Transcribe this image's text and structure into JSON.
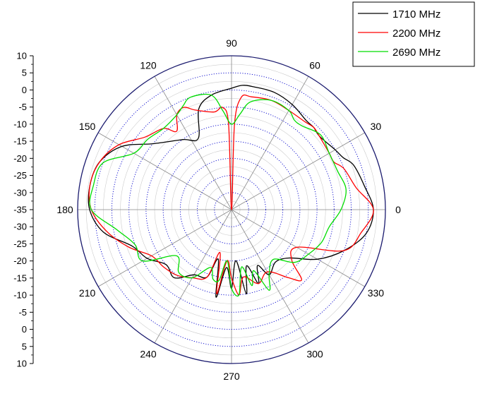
{
  "chart_data": {
    "type": "polar-line",
    "title": "",
    "angle_labels": [
      "0",
      "30",
      "60",
      "90",
      "120",
      "150",
      "180",
      "210",
      "240",
      "270",
      "300",
      "330"
    ],
    "radial_axis": {
      "ticks": [
        "10",
        "5",
        "0",
        "-5",
        "-10",
        "-15",
        "-20",
        "-25",
        "-30",
        "-35",
        "-30",
        "-25",
        "-20",
        "-15",
        "-10",
        "-5",
        "0",
        "5",
        "10"
      ],
      "range": [
        -35,
        10
      ],
      "step": 5
    },
    "grid": true,
    "legend": {
      "position": "top-right"
    },
    "series": [
      {
        "name": "1710 MHz",
        "color": "#000000",
        "angles": [
          0,
          10,
          20,
          25,
          30,
          40,
          45,
          50,
          60,
          70,
          80,
          85,
          90,
          100,
          108,
          115,
          125,
          140,
          150,
          160,
          170,
          180,
          190,
          200,
          210,
          220,
          230,
          240,
          250,
          255,
          260,
          265,
          270,
          275,
          280,
          285,
          290,
          295,
          300,
          310,
          320,
          330,
          340,
          350
        ],
        "values": [
          6.5,
          4.5,
          3,
          1,
          0,
          -1.5,
          -1,
          -1,
          0.5,
          1.5,
          1.5,
          1.5,
          0.5,
          -1,
          -4,
          -12,
          -10,
          -5,
          2,
          6,
          7,
          6.5,
          3,
          -4,
          -6.5,
          -10,
          -9,
          -13,
          -14,
          -20,
          -9,
          -18,
          -12,
          -20,
          -10,
          -18,
          -12,
          -17,
          -13,
          -15,
          -13,
          -6,
          0,
          5
        ],
        "points": [
          [
            0,
            6.5
          ],
          [
            10,
            4.5
          ],
          [
            20,
            3
          ],
          [
            25,
            1
          ],
          [
            30,
            0
          ],
          [
            40,
            -1.5
          ],
          [
            45,
            -1
          ],
          [
            50,
            -1
          ],
          [
            60,
            0.5
          ],
          [
            70,
            1.5
          ],
          [
            80,
            1.5
          ],
          [
            85,
            1.5
          ],
          [
            90,
            0.5
          ],
          [
            100,
            -1
          ],
          [
            108,
            -4
          ],
          [
            115,
            -12
          ],
          [
            125,
            -10
          ],
          [
            140,
            -5
          ],
          [
            150,
            2
          ],
          [
            160,
            6
          ],
          [
            170,
            7
          ],
          [
            180,
            6.5
          ],
          [
            190,
            3
          ],
          [
            200,
            -4
          ],
          [
            210,
            -6.5
          ],
          [
            220,
            -10
          ],
          [
            230,
            -9
          ],
          [
            240,
            -13
          ],
          [
            250,
            -14
          ],
          [
            255,
            -20
          ],
          [
            260,
            -9
          ],
          [
            265,
            -18
          ],
          [
            270,
            -12
          ],
          [
            275,
            -20
          ],
          [
            280,
            -10
          ],
          [
            285,
            -18
          ],
          [
            290,
            -12
          ],
          [
            295,
            -17
          ],
          [
            300,
            -13
          ],
          [
            310,
            -15
          ],
          [
            320,
            -13
          ],
          [
            330,
            -6
          ],
          [
            340,
            0
          ],
          [
            350,
            5
          ]
        ]
      },
      {
        "name": "2200 MHz",
        "color": "#ff0000",
        "angles": [
          0,
          10,
          20,
          25,
          30,
          40,
          45,
          50,
          60,
          70,
          80,
          85,
          88,
          90,
          92,
          95,
          100,
          110,
          115,
          120,
          125,
          130,
          140,
          150,
          160,
          170,
          180,
          190,
          200,
          210,
          220,
          230,
          240,
          250,
          255,
          260,
          265,
          270,
          275,
          280,
          290,
          300,
          310,
          315,
          320,
          330,
          340,
          350
        ],
        "values": [
          6.5,
          2,
          0,
          -2,
          -2,
          -1.5,
          -1,
          -1.5,
          -1.5,
          -1,
          -1.5,
          -2,
          -10,
          -35,
          -10,
          -5,
          -6,
          -4,
          -2,
          -3,
          -7,
          -4,
          -2,
          3,
          6,
          7,
          6,
          2,
          -3,
          -8,
          -9,
          -10,
          -12,
          -14,
          -22,
          -10,
          -20,
          -15,
          -10,
          -15,
          -12,
          -14,
          -9,
          -6,
          -12,
          -13,
          0,
          3.5
        ],
        "points": [
          [
            0,
            6.5
          ],
          [
            10,
            2
          ],
          [
            20,
            0
          ],
          [
            25,
            -2
          ],
          [
            30,
            -2
          ],
          [
            40,
            -1.5
          ],
          [
            45,
            -1
          ],
          [
            50,
            -1.5
          ],
          [
            60,
            -1.5
          ],
          [
            70,
            -1
          ],
          [
            80,
            -1.5
          ],
          [
            85,
            -2
          ],
          [
            88,
            -10
          ],
          [
            90,
            -35
          ],
          [
            92,
            -10
          ],
          [
            95,
            -5
          ],
          [
            100,
            -6
          ],
          [
            110,
            -4
          ],
          [
            115,
            -2
          ],
          [
            120,
            -3
          ],
          [
            125,
            -7
          ],
          [
            130,
            -4
          ],
          [
            140,
            -2
          ],
          [
            150,
            3
          ],
          [
            160,
            6
          ],
          [
            170,
            7
          ],
          [
            180,
            6
          ],
          [
            190,
            2
          ],
          [
            200,
            -3
          ],
          [
            210,
            -8
          ],
          [
            220,
            -9
          ],
          [
            230,
            -10
          ],
          [
            240,
            -12
          ],
          [
            250,
            -14
          ],
          [
            255,
            -22
          ],
          [
            260,
            -10
          ],
          [
            265,
            -20
          ],
          [
            270,
            -15
          ],
          [
            275,
            -10
          ],
          [
            280,
            -15
          ],
          [
            290,
            -12
          ],
          [
            300,
            -14
          ],
          [
            310,
            -9
          ],
          [
            315,
            -6
          ],
          [
            320,
            -12
          ],
          [
            330,
            -13
          ],
          [
            340,
            0
          ],
          [
            350,
            3.5
          ]
        ]
      },
      {
        "name": "2690 MHz",
        "color": "#00dd00",
        "angles": [
          0,
          10,
          20,
          30,
          40,
          50,
          55,
          60,
          70,
          80,
          85,
          90,
          95,
          100,
          110,
          115,
          120,
          130,
          140,
          150,
          160,
          170,
          180,
          190,
          200,
          210,
          220,
          230,
          240,
          250,
          255,
          260,
          265,
          270,
          275,
          280,
          285,
          290,
          295,
          300,
          310,
          320,
          330,
          340,
          350
        ],
        "values": [
          -3,
          -1,
          -2,
          -2,
          -1,
          -3,
          -3,
          -1.5,
          -1,
          -3,
          -7,
          -10,
          -6,
          -1,
          0,
          -1.5,
          -3,
          -4,
          -3,
          -2,
          5,
          6,
          6,
          -1,
          -5,
          -5,
          -14,
          -11,
          -12,
          -17,
          -14,
          -14,
          -20,
          -12,
          -10,
          -18,
          -12,
          -16,
          -9,
          -13,
          -16,
          -11,
          -9,
          -7,
          -6
        ],
        "points": [
          [
            0,
            -3
          ],
          [
            10,
            -1
          ],
          [
            20,
            -2
          ],
          [
            30,
            -2
          ],
          [
            40,
            -1
          ],
          [
            50,
            -3
          ],
          [
            55,
            -3
          ],
          [
            60,
            -1.5
          ],
          [
            70,
            -1
          ],
          [
            80,
            -3
          ],
          [
            85,
            -7
          ],
          [
            90,
            -10
          ],
          [
            95,
            -6
          ],
          [
            100,
            -1
          ],
          [
            110,
            0
          ],
          [
            115,
            -1.5
          ],
          [
            120,
            -3
          ],
          [
            130,
            -4
          ],
          [
            140,
            -3
          ],
          [
            150,
            -2
          ],
          [
            160,
            5
          ],
          [
            170,
            6
          ],
          [
            180,
            6
          ],
          [
            190,
            -1
          ],
          [
            200,
            -5
          ],
          [
            210,
            -5
          ],
          [
            220,
            -14
          ],
          [
            230,
            -11
          ],
          [
            240,
            -12
          ],
          [
            250,
            -17
          ],
          [
            255,
            -14
          ],
          [
            260,
            -14
          ],
          [
            265,
            -20
          ],
          [
            270,
            -12
          ],
          [
            275,
            -10
          ],
          [
            280,
            -18
          ],
          [
            285,
            -12
          ],
          [
            290,
            -16
          ],
          [
            295,
            -9
          ],
          [
            300,
            -13
          ],
          [
            310,
            -16
          ],
          [
            320,
            -11
          ],
          [
            330,
            -9
          ],
          [
            340,
            -7
          ],
          [
            350,
            -6
          ]
        ]
      }
    ],
    "colors": {
      "outer_ring": "#1a1a6e",
      "radial_grid": "#0000cc",
      "spokes": "#888888",
      "minor_rings": "#cccccc"
    }
  }
}
